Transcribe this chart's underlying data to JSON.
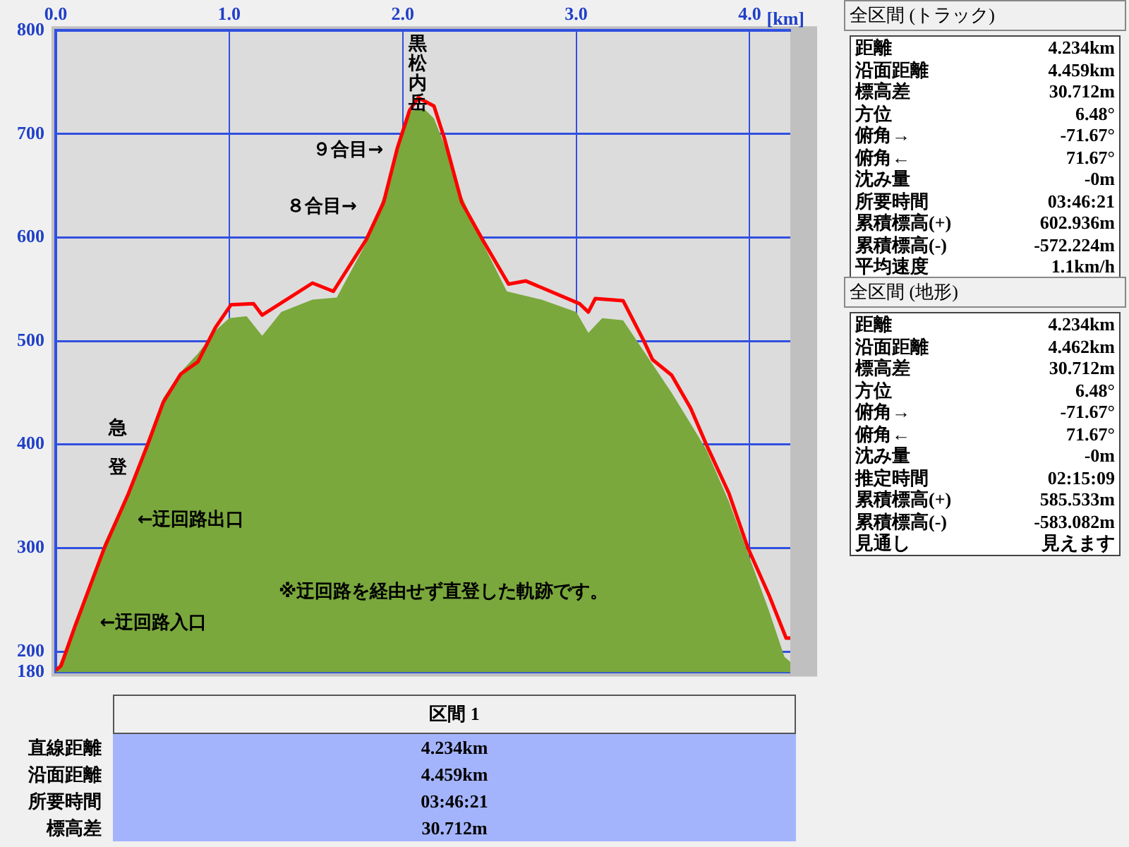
{
  "chart_data": [
    {
      "type": "area",
      "xlabel": "[km]",
      "xlim": [
        0,
        4.234
      ],
      "xticks": [
        {
          "value": 0,
          "label": "0.0"
        },
        {
          "value": 1,
          "label": "1.0"
        },
        {
          "value": 2,
          "label": "2.0"
        },
        {
          "value": 3,
          "label": "3.0"
        },
        {
          "value": 4,
          "label": "4.0"
        }
      ],
      "ylim": [
        180,
        800
      ],
      "yticks": [
        180,
        200,
        300,
        400,
        500,
        600,
        700,
        800
      ],
      "grid": true,
      "legend": false,
      "series": [
        {
          "type": "area",
          "color": "#7aa83c",
          "x": [
            0,
            0.11,
            0.28,
            0.42,
            0.53,
            0.62,
            0.72,
            0.82,
            0.92,
            1.0,
            1.1,
            1.19,
            1.3,
            1.48,
            1.62,
            1.79,
            1.89,
            1.97,
            2.05,
            2.12,
            2.18,
            2.24,
            2.34,
            2.46,
            2.6,
            2.8,
            3.0,
            3.07,
            3.15,
            3.27,
            3.39,
            3.55,
            3.66,
            3.75,
            3.88,
            3.99,
            4.11,
            4.2,
            4.234
          ],
          "values": [
            180,
            222,
            305,
            355,
            405,
            445,
            470,
            488,
            510,
            522,
            524,
            505,
            528,
            540,
            542,
            595,
            640,
            690,
            722,
            725,
            715,
            690,
            640,
            595,
            548,
            540,
            528,
            508,
            522,
            520,
            490,
            450,
            420,
            395,
            345,
            295,
            240,
            195,
            190
          ]
        },
        {
          "type": "line",
          "color": "#ff0000",
          "x": [
            0,
            0.03,
            0.11,
            0.28,
            0.42,
            0.53,
            0.62,
            0.72,
            0.82,
            0.92,
            1.01,
            1.14,
            1.19,
            1.48,
            1.6,
            1.79,
            1.89,
            1.97,
            2.04,
            2.09,
            2.18,
            2.24,
            2.34,
            2.46,
            2.61,
            2.71,
            3.02,
            3.07,
            3.11,
            3.27,
            3.39,
            3.44,
            3.55,
            3.66,
            3.75,
            3.88,
            3.99,
            4.11,
            4.21,
            4.234
          ],
          "values": [
            182,
            186,
            224,
            300,
            353,
            400,
            441,
            468,
            480,
            513,
            535,
            536,
            525,
            556,
            548,
            598,
            634,
            687,
            723,
            735,
            727,
            696,
            634,
            598,
            555,
            558,
            536,
            528,
            541,
            539,
            500,
            482,
            467,
            435,
            400,
            353,
            300,
            255,
            213,
            213
          ]
        }
      ],
      "annotations": [
        "黒松内岳",
        "９合目→",
        "８合目→",
        "急登",
        "←迂回路出口",
        "←迂回路入口",
        "※迂回路を経由せず直登した軌跡です。"
      ]
    },
    {
      "type": "other",
      "title": "全区間 (トラック)",
      "annotations": [
        "距離",
        "4.234km",
        "沿面距離",
        "4.459km",
        "標高差",
        "30.712m",
        "方位",
        "6.48°",
        "俯角→",
        "-71.67°",
        "俯角←",
        "71.67°",
        "沈み量",
        "-0m",
        "所要時間",
        "03:46:21",
        "累積標高(+)",
        "602.936m",
        "累積標高(-)",
        "-572.224m",
        "平均速度",
        "1.1km/h"
      ]
    },
    {
      "type": "other",
      "title": "全区間 (地形)",
      "annotations": [
        "距離",
        "4.234km",
        "沿面距離",
        "4.462km",
        "標高差",
        "30.712m",
        "方位",
        "6.48°",
        "俯角→",
        "-71.67°",
        "俯角←",
        "71.67°",
        "沈み量",
        "-0m",
        "推定時間",
        "02:15:09",
        "累積標高(+)",
        "585.533m",
        "累積標高(-)",
        "-583.082m",
        "見通し",
        "見えます"
      ]
    },
    {
      "type": "other",
      "title": "区間 1",
      "annotations": [
        "直線距離",
        "4.234km",
        "沿面距離",
        "4.459km",
        "所要時間",
        "03:46:21",
        "標高差",
        "30.712m"
      ]
    }
  ]
}
